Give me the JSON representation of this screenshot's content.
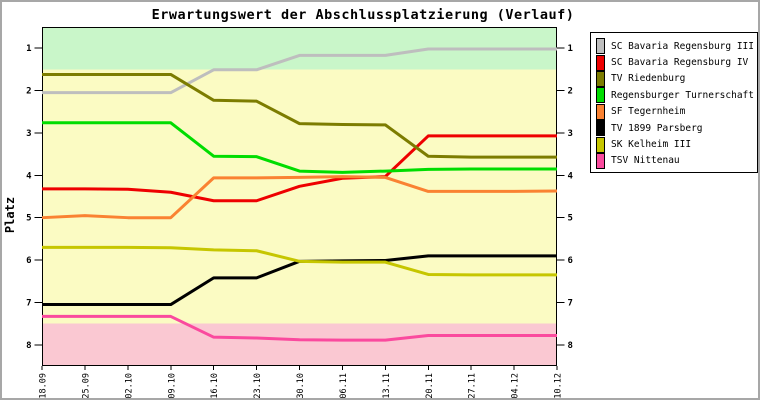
{
  "title": "Erwartungswert der Abschlussplatzierung (Verlauf)",
  "y_axis_label": "Platz",
  "chart_data": {
    "type": "line",
    "title": "Erwartungswert der Abschlussplatzierung (Verlauf)",
    "ylabel": "Platz",
    "xlabel": "",
    "y_inverted": true,
    "ylim": [
      0.5,
      8.5
    ],
    "y_ticks": [
      1,
      2,
      3,
      4,
      5,
      6,
      7,
      8
    ],
    "grid": false,
    "legend_position": "right-outside",
    "categories": [
      "18.09",
      "25.09",
      "02.10",
      "09.10",
      "16.10",
      "23.10",
      "30.10",
      "06.11",
      "13.11",
      "20.11",
      "27.11",
      "04.12",
      "10.12"
    ],
    "zones": [
      {
        "name": "top-zone",
        "from": 0.5,
        "to": 1.5,
        "color": "#c9f6c9"
      },
      {
        "name": "middle-zone",
        "from": 1.5,
        "to": 7.5,
        "color": "#fbfbc3"
      },
      {
        "name": "bottom-zone",
        "from": 7.5,
        "to": 8.5,
        "color": "#fac8d2"
      }
    ],
    "series": [
      {
        "name": "SC Bavaria Regensburg III",
        "color": "#bebebe",
        "values": [
          2.05,
          2.05,
          2.05,
          2.05,
          1.51,
          1.51,
          1.17,
          1.17,
          1.17,
          1.02,
          1.02,
          1.02,
          1.02
        ]
      },
      {
        "name": "SC Bavaria Regensburg IV",
        "color": "#ee0000",
        "values": [
          4.32,
          4.32,
          4.33,
          4.4,
          4.6,
          4.6,
          4.26,
          4.07,
          4.03,
          3.07,
          3.07,
          3.07,
          3.07
        ]
      },
      {
        "name": "TV Riedenburg",
        "color": "#7c7c00",
        "values": [
          1.62,
          1.62,
          1.62,
          1.62,
          2.23,
          2.25,
          2.78,
          2.8,
          2.81,
          3.55,
          3.57,
          3.57,
          3.57
        ]
      },
      {
        "name": "Regensburger Turnerschaft",
        "color": "#00dd00",
        "values": [
          2.76,
          2.76,
          2.76,
          2.76,
          3.55,
          3.56,
          3.9,
          3.93,
          3.9,
          3.86,
          3.85,
          3.85,
          3.85
        ]
      },
      {
        "name": "SF Tegernheim",
        "color": "#fa8232",
        "values": [
          5.0,
          4.95,
          5.0,
          5.0,
          4.06,
          4.06,
          4.05,
          4.03,
          4.05,
          4.38,
          4.38,
          4.38,
          4.37
        ]
      },
      {
        "name": "TV 1899 Parsberg",
        "color": "#000000",
        "values": [
          7.05,
          7.05,
          7.05,
          7.05,
          6.42,
          6.42,
          6.03,
          6.02,
          6.01,
          5.9,
          5.9,
          5.9,
          5.9
        ]
      },
      {
        "name": "SK Kelheim III",
        "color": "#c6c600",
        "values": [
          5.7,
          5.7,
          5.7,
          5.71,
          5.76,
          5.78,
          6.03,
          6.05,
          6.05,
          6.34,
          6.35,
          6.35,
          6.35
        ]
      },
      {
        "name": "TSV Nittenau",
        "color": "#fa4a9e",
        "values": [
          7.33,
          7.33,
          7.33,
          7.33,
          7.82,
          7.84,
          7.88,
          7.89,
          7.89,
          7.78,
          7.78,
          7.78,
          7.78
        ]
      }
    ]
  }
}
